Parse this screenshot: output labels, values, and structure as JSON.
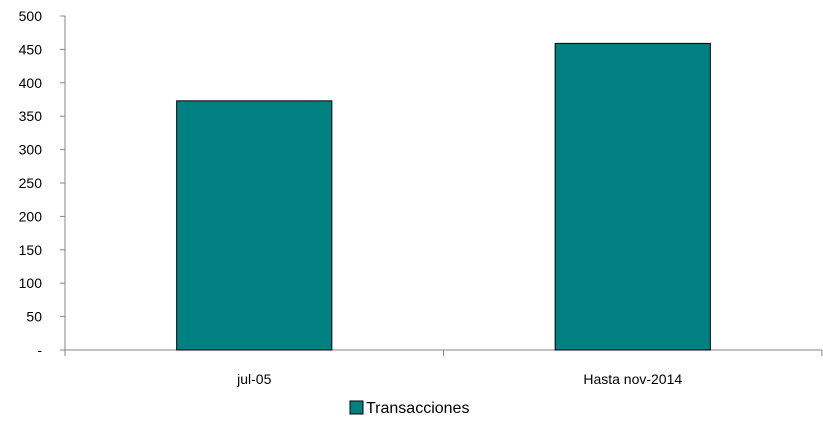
{
  "chart_data": {
    "type": "bar",
    "title": "",
    "xlabel": "",
    "ylabel": "",
    "categories": [
      "jul-05",
      "Hasta nov-2014"
    ],
    "series": [
      {
        "name": "Transacciones",
        "values": [
          373,
          459
        ],
        "color": "#008080"
      }
    ],
    "ylim": [
      0,
      500
    ],
    "yticks": [
      0,
      50,
      100,
      150,
      200,
      250,
      300,
      350,
      400,
      450,
      500
    ],
    "ytick_labels": [
      "-",
      "50",
      "100",
      "150",
      "200",
      "250",
      "300",
      "350",
      "400",
      "450",
      "500"
    ],
    "grid": false,
    "legend_position": "bottom",
    "bar_outline_color": "#000000",
    "axis_color": "#868686"
  }
}
